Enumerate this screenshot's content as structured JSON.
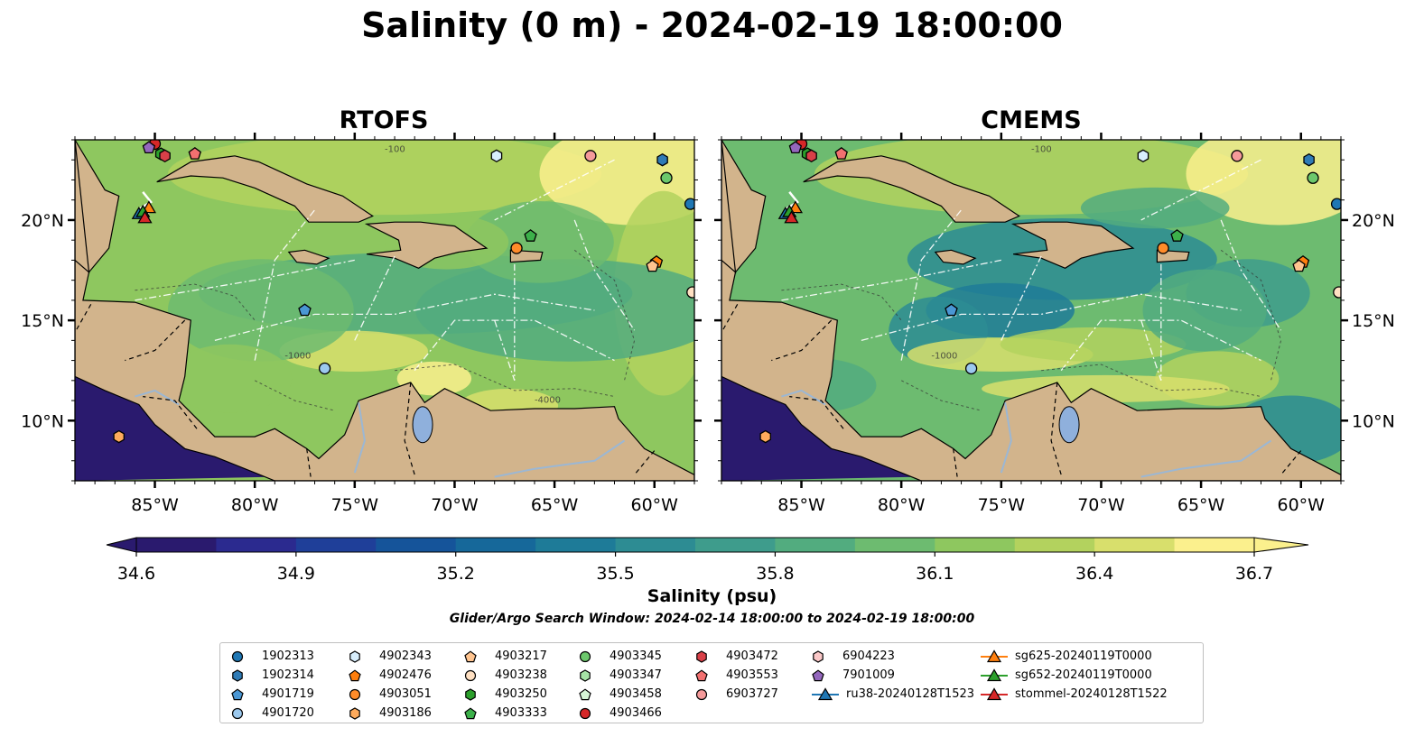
{
  "page": {
    "title": "Salinity (0 m) - 2024-02-19 18:00:00",
    "search_window": "Glider/Argo Search Window: 2024-02-14 18:00:00 to 2024-02-19 18:00:00"
  },
  "chart_data": [
    {
      "type": "heatmap",
      "title": "RTOFS",
      "field": "sea surface salinity at 0 m",
      "lon_range": [
        -89,
        -58
      ],
      "lat_range": [
        7,
        24
      ],
      "x_ticks": [
        "85°W",
        "80°W",
        "75°W",
        "70°W",
        "65°W",
        "60°W"
      ],
      "x_tick_values": [
        -85,
        -80,
        -75,
        -70,
        -65,
        -60
      ],
      "y_ticks": [
        "10°N",
        "15°N",
        "20°N"
      ],
      "y_tick_values": [
        10,
        15,
        20
      ],
      "y_tick_side": "left",
      "contour_labels": [
        "-100",
        "-1000",
        "-4000"
      ]
    },
    {
      "type": "heatmap",
      "title": "CMEMS",
      "field": "sea surface salinity at 0 m",
      "lon_range": [
        -89,
        -58
      ],
      "lat_range": [
        7,
        24
      ],
      "x_ticks": [
        "85°W",
        "80°W",
        "75°W",
        "70°W",
        "65°W",
        "60°W"
      ],
      "x_tick_values": [
        -85,
        -80,
        -75,
        -70,
        -65,
        -60
      ],
      "y_ticks": [
        "10°N",
        "15°N",
        "20°N"
      ],
      "y_tick_values": [
        10,
        15,
        20
      ],
      "y_tick_side": "right",
      "contour_labels": [
        "-100",
        "-1000"
      ]
    }
  ],
  "colorbar": {
    "label": "Salinity (psu)",
    "min": 34.6,
    "max": 36.7,
    "extend": "both",
    "ticks": [
      "34.6",
      "34.9",
      "35.2",
      "35.5",
      "35.8",
      "36.1",
      "36.4",
      "36.7"
    ],
    "colormap": "haline",
    "colors": [
      "#2a1a6e",
      "#2b2a8f",
      "#1f3f99",
      "#15549a",
      "#16689a",
      "#1e7b98",
      "#2d8c93",
      "#3e9c8c",
      "#52ac7f",
      "#6dbb70",
      "#8ec75f",
      "#b3d25e",
      "#d8df6c",
      "#fbf08d"
    ]
  },
  "map_colors": {
    "land": "#d2b48c",
    "lake": "#8fb0dc",
    "deep_pacific": "#2a1a6e"
  },
  "legend": {
    "columns": [
      [
        {
          "label": "1902313",
          "marker": "circle",
          "color": "#1f77b4"
        },
        {
          "label": "1902314",
          "marker": "hexagon",
          "color": "#2f7bb6"
        },
        {
          "label": "4901719",
          "marker": "pentagon",
          "color": "#4a97d4"
        },
        {
          "label": "4901720",
          "marker": "circle",
          "color": "#9cc9ee"
        }
      ],
      [
        {
          "label": "4902343",
          "marker": "hexagon",
          "color": "#d8eefc"
        },
        {
          "label": "4902476",
          "marker": "pentagon",
          "color": "#ff7f0e"
        },
        {
          "label": "4903051",
          "marker": "circle",
          "color": "#ff8c2a"
        },
        {
          "label": "4903186",
          "marker": "hexagon",
          "color": "#ffab5c"
        }
      ],
      [
        {
          "label": "4903217",
          "marker": "pentagon",
          "color": "#ffc48f"
        },
        {
          "label": "4903238",
          "marker": "circle",
          "color": "#ffe0c2"
        },
        {
          "label": "4903250",
          "marker": "hexagon",
          "color": "#2ca02c"
        },
        {
          "label": "4903333",
          "marker": "pentagon",
          "color": "#3cb04a"
        }
      ],
      [
        {
          "label": "4903345",
          "marker": "circle",
          "color": "#6cc86c"
        },
        {
          "label": "4903347",
          "marker": "hexagon",
          "color": "#a6e3a6"
        },
        {
          "label": "4903458",
          "marker": "pentagon",
          "color": "#d6f5d6"
        },
        {
          "label": "4903466",
          "marker": "circle",
          "color": "#d62728"
        }
      ],
      [
        {
          "label": "4903472",
          "marker": "hexagon",
          "color": "#d84048"
        },
        {
          "label": "4903553",
          "marker": "pentagon",
          "color": "#f27070"
        },
        {
          "label": "6903727",
          "marker": "circle",
          "color": "#f59a9a"
        }
      ],
      [
        {
          "label": "6904223",
          "marker": "hexagon",
          "color": "#fbc8c8"
        },
        {
          "label": "7901009",
          "marker": "pentagon",
          "color": "#9467bd"
        },
        {
          "label": "ru38-20240128T1523",
          "marker": "triangle-line",
          "color": "#1f77b4"
        }
      ],
      [
        {
          "label": "sg625-20240119T0000",
          "marker": "triangle-line",
          "color": "#ff7f0e"
        },
        {
          "label": "sg652-20240119T0000",
          "marker": "triangle-line",
          "color": "#2ca02c"
        },
        {
          "label": "stommel-20240128T1522",
          "marker": "triangle-line",
          "color": "#d62728"
        }
      ]
    ]
  },
  "platforms": [
    {
      "id": "1902313",
      "lon": -58.2,
      "lat": 20.8
    },
    {
      "id": "1902314",
      "lon": -59.6,
      "lat": 23.0
    },
    {
      "id": "4901719",
      "lon": -77.5,
      "lat": 15.5
    },
    {
      "id": "4901720",
      "lon": -76.5,
      "lat": 12.6
    },
    {
      "id": "4902343",
      "lon": -67.9,
      "lat": 23.2
    },
    {
      "id": "4902476",
      "lon": -59.9,
      "lat": 17.9
    },
    {
      "id": "4903051",
      "lon": -66.9,
      "lat": 18.6
    },
    {
      "id": "4903186",
      "lon": -86.8,
      "lat": 9.2
    },
    {
      "id": "4903217",
      "lon": -60.1,
      "lat": 17.7
    },
    {
      "id": "4903238",
      "lon": -58.1,
      "lat": 16.4
    },
    {
      "id": "4903250",
      "lon": -84.7,
      "lat": 23.3
    },
    {
      "id": "4903333",
      "lon": -66.2,
      "lat": 19.2
    },
    {
      "id": "4903345",
      "lon": -59.4,
      "lat": 22.1
    },
    {
      "id": "4903466",
      "lon": -85.0,
      "lat": 23.8
    },
    {
      "id": "4903472",
      "lon": -84.5,
      "lat": 23.2
    },
    {
      "id": "4903553",
      "lon": -83.0,
      "lat": 23.3
    },
    {
      "id": "6903727",
      "lon": -63.2,
      "lat": 23.2
    },
    {
      "id": "7901009",
      "lon": -85.3,
      "lat": 23.6
    }
  ],
  "glider_tracks": [
    {
      "id": "ru38-20240128T1523",
      "lon": -85.8,
      "lat": 20.3
    },
    {
      "id": "sg625-20240119T0000",
      "lon": -85.3,
      "lat": 20.6
    },
    {
      "id": "sg652-20240119T0000",
      "lon": -85.6,
      "lat": 20.4
    },
    {
      "id": "stommel-20240128T1522",
      "lon": -85.5,
      "lat": 20.1
    }
  ]
}
